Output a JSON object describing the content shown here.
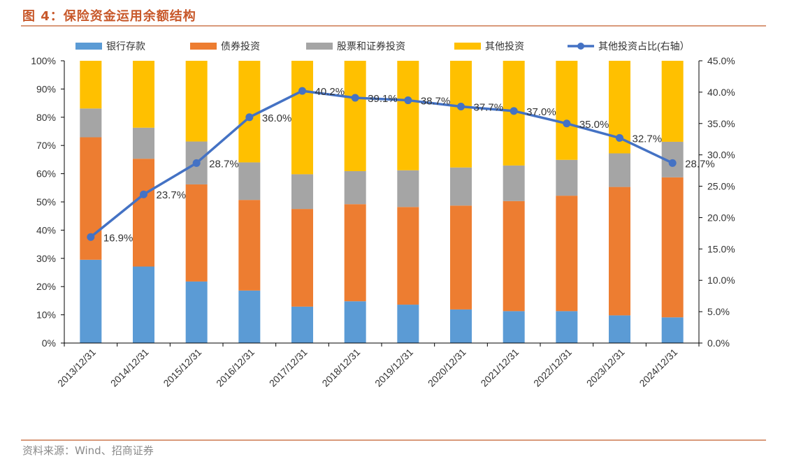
{
  "figure": {
    "title": "图 4：保险资金运用余额结构",
    "source": "资料来源：Wind、招商证券"
  },
  "chart_data": {
    "type": "bar",
    "stacked": true,
    "title": "保险资金运用余额结构",
    "categories": [
      "2013/12/31",
      "2014/12/31",
      "2015/12/31",
      "2016/12/31",
      "2017/12/31",
      "2018/12/31",
      "2019/12/31",
      "2020/12/31",
      "2021/12/31",
      "2022/12/31",
      "2023/12/31",
      "2024/12/31"
    ],
    "series": [
      {
        "name": "银行存款",
        "type": "bar",
        "color": "#5b9bd5",
        "values": [
          29.5,
          27.1,
          21.8,
          18.6,
          12.9,
          14.8,
          13.6,
          11.9,
          11.3,
          11.3,
          9.8,
          9.1
        ]
      },
      {
        "name": "债券投资",
        "type": "bar",
        "color": "#ed7d31",
        "values": [
          43.4,
          38.2,
          34.4,
          32.1,
          34.6,
          34.4,
          34.6,
          36.8,
          39.0,
          40.9,
          45.5,
          49.6
        ]
      },
      {
        "name": "股票和证券投资",
        "type": "bar",
        "color": "#a5a5a5",
        "values": [
          10.2,
          11.0,
          15.2,
          13.3,
          12.3,
          11.7,
          13.0,
          13.5,
          12.6,
          12.7,
          11.9,
          12.6
        ]
      },
      {
        "name": "其他投资",
        "type": "bar",
        "color": "#ffc000",
        "values": [
          16.9,
          23.7,
          28.6,
          36.0,
          40.2,
          39.1,
          38.8,
          37.8,
          37.1,
          35.1,
          32.8,
          28.7
        ]
      },
      {
        "name": "其他投资占比(右轴）",
        "type": "line",
        "axis": "right",
        "color": "#4472c4",
        "values": [
          16.9,
          23.7,
          28.7,
          36.0,
          40.2,
          39.1,
          38.7,
          37.7,
          37.0,
          35.0,
          32.7,
          28.7
        ],
        "labels": [
          "16.9%",
          "23.7%",
          "28.7%",
          "36.0%",
          "40.2%",
          "39.1%",
          "38.7%",
          "37.7%",
          "37.0%",
          "35.0%",
          "32.7%",
          "28.7%"
        ]
      }
    ],
    "y_left": {
      "range": [
        0,
        100
      ],
      "ticks": [
        "0%",
        "10%",
        "20%",
        "30%",
        "40%",
        "50%",
        "60%",
        "70%",
        "80%",
        "90%",
        "100%"
      ]
    },
    "y_right": {
      "range": [
        0,
        45
      ],
      "ticks": [
        "0.0%",
        "5.0%",
        "10.0%",
        "15.0%",
        "20.0%",
        "25.0%",
        "30.0%",
        "35.0%",
        "40.0%",
        "45.0%"
      ]
    },
    "legend_position": "top"
  }
}
